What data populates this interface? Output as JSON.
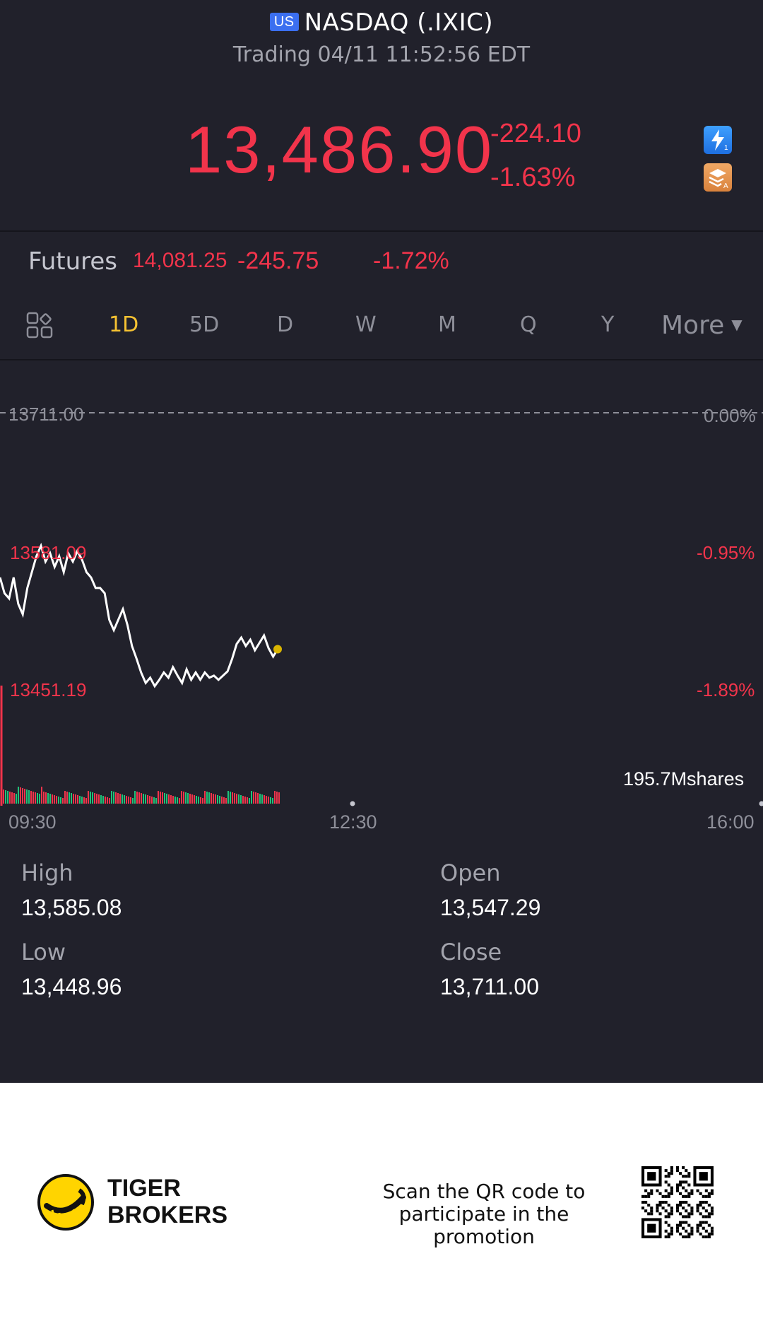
{
  "header": {
    "market_badge": "US",
    "title": "NASDAQ (.IXIC)",
    "subtitle": "Trading 04/11 11:52:56 EDT"
  },
  "quote": {
    "price": "13,486.90",
    "change": "-224.10",
    "change_pct": "-1.63%",
    "color_down": "#f2344b"
  },
  "futures": {
    "label": "Futures",
    "price": "14,081.25",
    "change": "-245.75",
    "change_pct": "-1.72%"
  },
  "tabs": {
    "items": [
      "1D",
      "5D",
      "D",
      "W",
      "M",
      "Q",
      "Y"
    ],
    "active": "1D",
    "more_label": "More",
    "active_color": "#f6c232"
  },
  "chart": {
    "y_labels_left": [
      "13711.00",
      "13581.09",
      "13451.19"
    ],
    "y_labels_right": [
      "0.00%",
      "-0.95%",
      "-1.89%"
    ],
    "volume_label": "195.7Mshares",
    "x_labels": [
      "09:30",
      "12:30",
      "16:00"
    ]
  },
  "chart_data": {
    "type": "line",
    "x_labels": [
      "09:30",
      "12:30",
      "16:00"
    ],
    "ylim": [
      13451.19,
      13711.0
    ],
    "reference_close": 13711.0,
    "series": [
      {
        "values": [
          13555,
          13540,
          13535,
          13555,
          13530,
          13520,
          13545,
          13560,
          13575,
          13585,
          13570,
          13578,
          13565,
          13575,
          13560,
          13578,
          13570,
          13580,
          13572,
          13560,
          13555,
          13545,
          13545,
          13540,
          13515,
          13505,
          13515,
          13525,
          13510,
          13490,
          13478,
          13465,
          13455,
          13460,
          13452,
          13458,
          13465,
          13460,
          13470,
          13462,
          13455,
          13468,
          13458,
          13465,
          13458,
          13465,
          13460,
          13462,
          13458,
          13462,
          13466,
          13478,
          13492,
          13498,
          13490,
          13496,
          13486,
          13493,
          13500,
          13488,
          13480,
          13487
        ]
      }
    ]
  },
  "stats": {
    "high_label": "High",
    "high": "13,585.08",
    "low_label": "Low",
    "low": "13,448.96",
    "open_label": "Open",
    "open": "13,547.29",
    "close_label": "Close",
    "close": "13,711.00"
  },
  "footer": {
    "brand_line1": "TIGER",
    "brand_line2": "BROKERS",
    "promo_line1": "Scan the QR code to",
    "promo_line2": "participate in the promotion"
  }
}
